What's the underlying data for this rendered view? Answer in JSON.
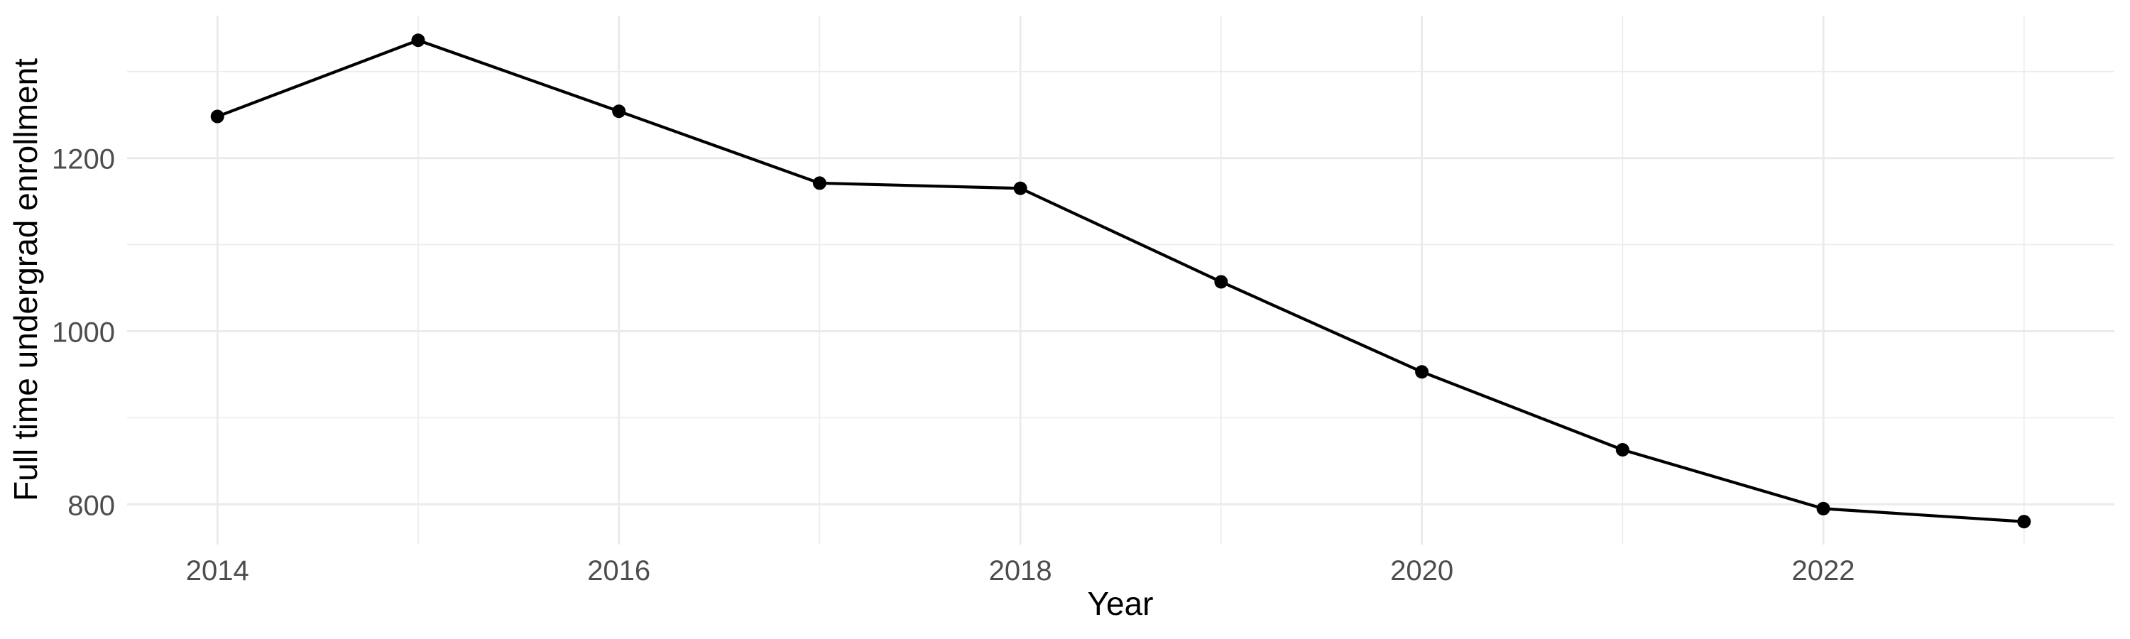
{
  "chart_data": {
    "type": "line",
    "title": "",
    "xlabel": "Year",
    "ylabel": "Full time undergrad enrollment",
    "x": [
      2014,
      2015,
      2016,
      2017,
      2018,
      2019,
      2020,
      2021,
      2022,
      2023
    ],
    "values": [
      1248,
      1336,
      1254,
      1171,
      1165,
      1057,
      953,
      863,
      795,
      780
    ],
    "series_name": "Full time undergrad enrollment",
    "x_major_ticks": [
      2014,
      2016,
      2018,
      2020,
      2022
    ],
    "x_minor_ticks": [
      2015,
      2017,
      2019,
      2021,
      2023
    ],
    "y_major_ticks": [
      800,
      1000,
      1200
    ],
    "y_minor_ticks": [
      900,
      1100,
      1300
    ],
    "xlim": [
      2013.55,
      2023.45
    ],
    "ylim": [
      753.5,
      1364.5
    ],
    "grid": "on",
    "legend": "none",
    "marker": "point",
    "colors": {
      "line": "#000000",
      "point": "#000000",
      "grid": "#ebebeb",
      "tick_label": "#4d4d4d",
      "axis_title": "#000000",
      "background": "#ffffff"
    }
  }
}
